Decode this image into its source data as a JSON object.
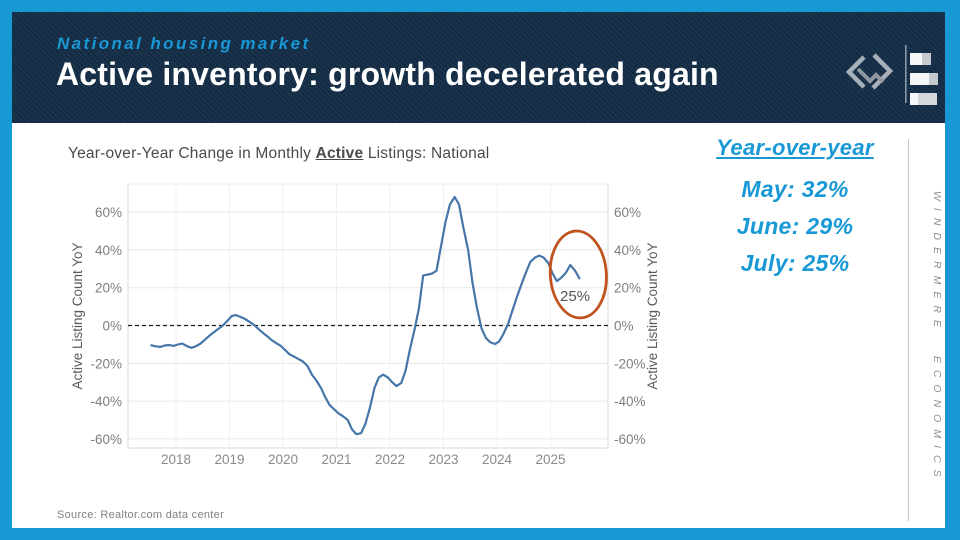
{
  "theme": {
    "accent": "#1998D6",
    "header_bg": "#16304A",
    "callout_blue": "#1899D6"
  },
  "header": {
    "eyebrow": "National housing market",
    "title": "Active inventory: growth decelerated again"
  },
  "callout": {
    "heading": "Year-over-year",
    "lines": [
      "May: 32%",
      "June: 29%",
      "July: 25%"
    ]
  },
  "sidebar": {
    "vertical_text": "WINDERMERE ECONOMICS"
  },
  "footer": {
    "source": "Source: Realtor.com data center"
  },
  "chart_data": {
    "type": "line",
    "title_prefix": "Year-over-Year Change in Monthly ",
    "title_emphasis": "Active",
    "title_suffix": " Listings: National",
    "ylabel_left": "Active Listing Count YoY",
    "ylabel_right": "Active Listing Count YoY",
    "y_ticks": [
      60,
      40,
      20,
      0,
      -20,
      -40,
      -60
    ],
    "y_tick_suffix": "%",
    "x_ticks": [
      2018,
      2019,
      2020,
      2021,
      2022,
      2023,
      2024,
      2025
    ],
    "xlim": [
      2017.45,
      2025.8
    ],
    "ylim": [
      -70,
      75
    ],
    "grid": true,
    "zero_line_dashed": true,
    "line_color": "#4676A8",
    "annotation": {
      "label": "25%",
      "label_year": 2025.44,
      "label_pct": 15.5,
      "ellipse_color": "#C0531F",
      "ellipse_center_year": 2025.52,
      "ellipse_center_pct": 27,
      "highlighted_points": [
        [
          "May 2025",
          32
        ],
        [
          "June 2025",
          29
        ],
        [
          "July 2025",
          25
        ]
      ]
    },
    "series": [
      {
        "name": "Active Listing Count YoY",
        "points": [
          [
            2017.54,
            -10.5
          ],
          [
            2017.62,
            -11
          ],
          [
            2017.71,
            -11.3
          ],
          [
            2017.79,
            -10.6
          ],
          [
            2017.87,
            -10.3
          ],
          [
            2017.96,
            -10.8
          ],
          [
            2018.04,
            -10
          ],
          [
            2018.12,
            -9.6
          ],
          [
            2018.21,
            -11
          ],
          [
            2018.29,
            -11.8
          ],
          [
            2018.37,
            -11
          ],
          [
            2018.46,
            -9.5
          ],
          [
            2018.54,
            -7.5
          ],
          [
            2018.62,
            -5.5
          ],
          [
            2018.71,
            -3.5
          ],
          [
            2018.79,
            -1.8
          ],
          [
            2018.87,
            -0.2
          ],
          [
            2018.96,
            2.5
          ],
          [
            2019.04,
            5
          ],
          [
            2019.12,
            5.5
          ],
          [
            2019.21,
            4.5
          ],
          [
            2019.29,
            3.5
          ],
          [
            2019.37,
            2
          ],
          [
            2019.46,
            0.3
          ],
          [
            2019.54,
            -1.8
          ],
          [
            2019.62,
            -3.8
          ],
          [
            2019.71,
            -5.8
          ],
          [
            2019.79,
            -7.8
          ],
          [
            2019.87,
            -9.2
          ],
          [
            2019.96,
            -10.8
          ],
          [
            2020.04,
            -13
          ],
          [
            2020.12,
            -15.2
          ],
          [
            2020.21,
            -16.5
          ],
          [
            2020.29,
            -17.8
          ],
          [
            2020.37,
            -19
          ],
          [
            2020.46,
            -21.5
          ],
          [
            2020.54,
            -26
          ],
          [
            2020.62,
            -29
          ],
          [
            2020.71,
            -33
          ],
          [
            2020.79,
            -38
          ],
          [
            2020.87,
            -42
          ],
          [
            2020.96,
            -44.5
          ],
          [
            2021.04,
            -46.5
          ],
          [
            2021.12,
            -48
          ],
          [
            2021.21,
            -50
          ],
          [
            2021.29,
            -55
          ],
          [
            2021.37,
            -57.5
          ],
          [
            2021.46,
            -57
          ],
          [
            2021.54,
            -52
          ],
          [
            2021.62,
            -44
          ],
          [
            2021.71,
            -33
          ],
          [
            2021.79,
            -27.5
          ],
          [
            2021.87,
            -26
          ],
          [
            2021.96,
            -27.5
          ],
          [
            2022.04,
            -30
          ],
          [
            2022.12,
            -32
          ],
          [
            2022.21,
            -30.5
          ],
          [
            2022.29,
            -24
          ],
          [
            2022.37,
            -13
          ],
          [
            2022.46,
            -2
          ],
          [
            2022.54,
            9
          ],
          [
            2022.62,
            26.5
          ],
          [
            2022.71,
            27
          ],
          [
            2022.79,
            27.5
          ],
          [
            2022.87,
            29
          ],
          [
            2022.96,
            43
          ],
          [
            2023.04,
            55
          ],
          [
            2023.12,
            64
          ],
          [
            2023.21,
            68
          ],
          [
            2023.29,
            64
          ],
          [
            2023.37,
            52
          ],
          [
            2023.46,
            40
          ],
          [
            2023.54,
            23
          ],
          [
            2023.62,
            10
          ],
          [
            2023.71,
            -1.5
          ],
          [
            2023.79,
            -6.5
          ],
          [
            2023.87,
            -8.8
          ],
          [
            2023.96,
            -9.8
          ],
          [
            2024.04,
            -8.5
          ],
          [
            2024.12,
            -4.5
          ],
          [
            2024.21,
            1
          ],
          [
            2024.29,
            8
          ],
          [
            2024.37,
            15
          ],
          [
            2024.46,
            22
          ],
          [
            2024.54,
            28
          ],
          [
            2024.62,
            33.5
          ],
          [
            2024.71,
            36
          ],
          [
            2024.79,
            37
          ],
          [
            2024.87,
            36
          ],
          [
            2024.96,
            33
          ],
          [
            2025.04,
            27.5
          ],
          [
            2025.12,
            23.5
          ],
          [
            2025.21,
            25.5
          ],
          [
            2025.29,
            28
          ],
          [
            2025.37,
            32
          ],
          [
            2025.46,
            29
          ],
          [
            2025.54,
            25
          ]
        ]
      }
    ]
  }
}
